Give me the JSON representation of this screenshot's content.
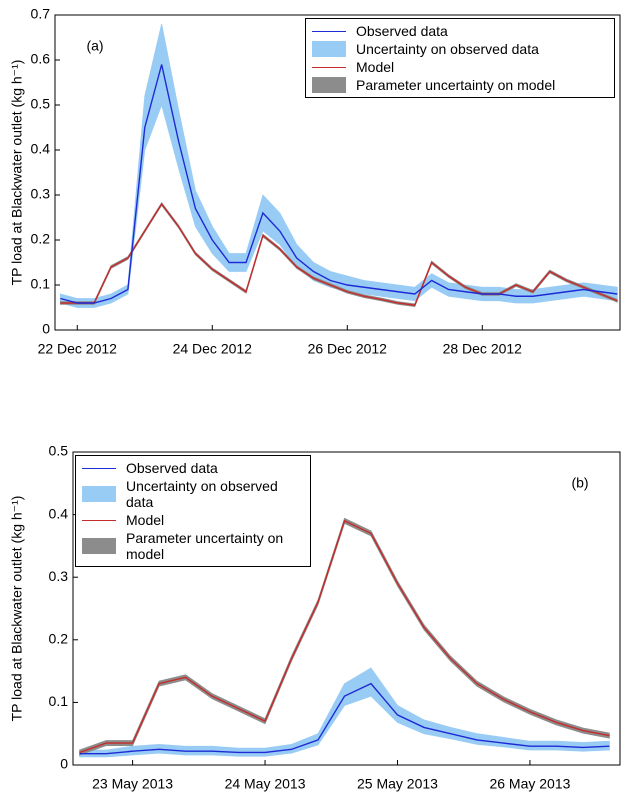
{
  "chart_data": [
    {
      "type": "line",
      "ylabel": "TP load at Blackwater outlet (kg h⁻¹)",
      "annotation": "(a)",
      "legend": "upper right",
      "xlim": [
        -0.33,
        8.04
      ],
      "ylim": [
        0,
        0.7
      ],
      "xticks": [
        {
          "value": 0,
          "label": "22 Dec 2012"
        },
        {
          "value": 2,
          "label": "24 Dec 2012"
        },
        {
          "value": 4,
          "label": "26 Dec 2012"
        },
        {
          "value": 6,
          "label": "28 Dec 2012"
        }
      ],
      "yticks": [
        0,
        0.1,
        0.2,
        0.3,
        0.4,
        0.5,
        0.6,
        0.7
      ],
      "x": [
        -0.25,
        0,
        0.25,
        0.5,
        0.75,
        1,
        1.25,
        1.5,
        1.75,
        2,
        2.25,
        2.5,
        2.75,
        3,
        3.25,
        3.5,
        3.75,
        4,
        4.25,
        4.5,
        4.75,
        5,
        5.25,
        5.5,
        5.75,
        6,
        6.25,
        6.5,
        6.75,
        7,
        7.25,
        7.5,
        7.75,
        8
      ],
      "series": [
        {
          "name": "Observed data",
          "color": "#1c2bd6",
          "values": [
            0.07,
            0.06,
            0.06,
            0.07,
            0.09,
            0.45,
            0.59,
            0.42,
            0.27,
            0.2,
            0.15,
            0.15,
            0.26,
            0.22,
            0.16,
            0.13,
            0.11,
            0.1,
            0.095,
            0.09,
            0.085,
            0.08,
            0.11,
            0.09,
            0.085,
            0.08,
            0.08,
            0.075,
            0.075,
            0.08,
            0.085,
            0.09,
            0.085,
            0.08
          ]
        },
        {
          "name": "Uncertainty on observed data",
          "color": "#99ccf5",
          "lower": [
            0.06,
            0.05,
            0.05,
            0.06,
            0.08,
            0.4,
            0.5,
            0.36,
            0.23,
            0.17,
            0.13,
            0.13,
            0.22,
            0.19,
            0.14,
            0.11,
            0.095,
            0.085,
            0.08,
            0.075,
            0.07,
            0.065,
            0.095,
            0.075,
            0.07,
            0.065,
            0.065,
            0.06,
            0.06,
            0.065,
            0.07,
            0.075,
            0.07,
            0.065
          ],
          "upper": [
            0.08,
            0.07,
            0.07,
            0.08,
            0.1,
            0.52,
            0.68,
            0.49,
            0.31,
            0.23,
            0.17,
            0.17,
            0.3,
            0.26,
            0.19,
            0.15,
            0.13,
            0.12,
            0.11,
            0.105,
            0.1,
            0.095,
            0.125,
            0.105,
            0.1,
            0.095,
            0.095,
            0.09,
            0.09,
            0.095,
            0.1,
            0.105,
            0.1,
            0.095
          ]
        },
        {
          "name": "Model",
          "color": "#c62b2b",
          "values": [
            0.06,
            0.06,
            0.06,
            0.14,
            0.16,
            0.22,
            0.28,
            0.23,
            0.17,
            0.135,
            0.11,
            0.085,
            0.21,
            0.18,
            0.14,
            0.115,
            0.1,
            0.085,
            0.075,
            0.068,
            0.06,
            0.055,
            0.15,
            0.12,
            0.095,
            0.08,
            0.08,
            0.1,
            0.085,
            0.13,
            0.11,
            0.095,
            0.08,
            0.065
          ]
        },
        {
          "name": "Parameter uncertainty on model",
          "color": "#8c8c8c",
          "lower": [
            0.057,
            0.057,
            0.057,
            0.137,
            0.157,
            0.217,
            0.277,
            0.227,
            0.167,
            0.132,
            0.107,
            0.082,
            0.207,
            0.177,
            0.137,
            0.112,
            0.097,
            0.082,
            0.072,
            0.065,
            0.057,
            0.052,
            0.147,
            0.117,
            0.092,
            0.077,
            0.077,
            0.097,
            0.082,
            0.127,
            0.107,
            0.092,
            0.077,
            0.062
          ],
          "upper": [
            0.063,
            0.063,
            0.063,
            0.143,
            0.163,
            0.223,
            0.283,
            0.233,
            0.173,
            0.138,
            0.113,
            0.088,
            0.213,
            0.183,
            0.143,
            0.118,
            0.103,
            0.088,
            0.078,
            0.071,
            0.063,
            0.058,
            0.153,
            0.123,
            0.098,
            0.083,
            0.083,
            0.103,
            0.088,
            0.133,
            0.113,
            0.098,
            0.083,
            0.068
          ]
        }
      ]
    },
    {
      "type": "line",
      "ylabel": "TP load at Blackwater outlet (kg h⁻¹)",
      "annotation": "(b)",
      "legend": "upper left",
      "xlim": [
        -0.45,
        3.68
      ],
      "ylim": [
        0,
        0.5
      ],
      "xticks": [
        {
          "value": 0,
          "label": "23 May 2013"
        },
        {
          "value": 1,
          "label": "24 May 2013"
        },
        {
          "value": 2,
          "label": "25 May 2013"
        },
        {
          "value": 3,
          "label": "26 May 2013"
        }
      ],
      "yticks": [
        0,
        0.1,
        0.2,
        0.3,
        0.4,
        0.5
      ],
      "x": [
        -0.4,
        -0.2,
        0,
        0.2,
        0.4,
        0.6,
        0.8,
        1,
        1.2,
        1.4,
        1.6,
        1.8,
        2,
        2.2,
        2.4,
        2.6,
        2.8,
        3,
        3.2,
        3.4,
        3.6
      ],
      "series": [
        {
          "name": "Observed data",
          "color": "#1c2bd6",
          "values": [
            0.018,
            0.018,
            0.022,
            0.025,
            0.022,
            0.022,
            0.02,
            0.02,
            0.025,
            0.04,
            0.11,
            0.13,
            0.08,
            0.06,
            0.05,
            0.04,
            0.035,
            0.03,
            0.03,
            0.028,
            0.03
          ]
        },
        {
          "name": "Uncertainty on observed data",
          "color": "#99ccf5",
          "lower": [
            0.013,
            0.013,
            0.016,
            0.019,
            0.016,
            0.016,
            0.014,
            0.014,
            0.019,
            0.032,
            0.095,
            0.11,
            0.068,
            0.05,
            0.042,
            0.033,
            0.029,
            0.024,
            0.024,
            0.022,
            0.024
          ],
          "upper": [
            0.024,
            0.024,
            0.03,
            0.033,
            0.03,
            0.03,
            0.027,
            0.027,
            0.033,
            0.05,
            0.13,
            0.155,
            0.095,
            0.072,
            0.06,
            0.05,
            0.044,
            0.038,
            0.038,
            0.036,
            0.038
          ]
        },
        {
          "name": "Model",
          "color": "#c62b2b",
          "values": [
            0.02,
            0.035,
            0.035,
            0.13,
            0.14,
            0.11,
            0.09,
            0.07,
            0.17,
            0.26,
            0.39,
            0.37,
            0.29,
            0.22,
            0.17,
            0.13,
            0.105,
            0.085,
            0.068,
            0.055,
            0.047
          ]
        },
        {
          "name": "Parameter uncertainty on model",
          "color": "#8c8c8c",
          "lower": [
            0.016,
            0.031,
            0.031,
            0.126,
            0.136,
            0.106,
            0.086,
            0.066,
            0.166,
            0.256,
            0.386,
            0.366,
            0.286,
            0.216,
            0.166,
            0.126,
            0.101,
            0.081,
            0.064,
            0.051,
            0.043
          ],
          "upper": [
            0.024,
            0.039,
            0.039,
            0.134,
            0.144,
            0.114,
            0.094,
            0.074,
            0.174,
            0.264,
            0.394,
            0.374,
            0.294,
            0.224,
            0.174,
            0.134,
            0.109,
            0.089,
            0.072,
            0.059,
            0.051
          ]
        }
      ]
    }
  ]
}
